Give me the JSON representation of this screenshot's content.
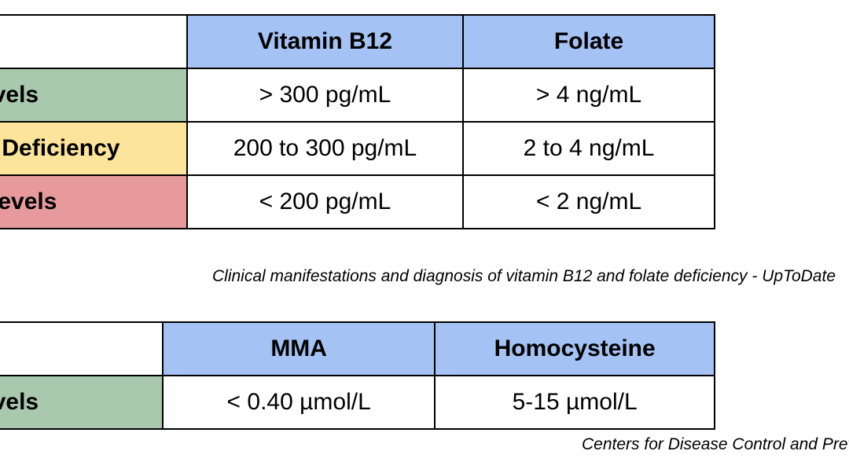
{
  "table1": {
    "headers": [
      "",
      "Vitamin B12",
      "Folate"
    ],
    "rows": [
      {
        "label": "Normal Levels",
        "b12": "> 300 pg/mL",
        "folate": "> 4 ng/mL",
        "color": "#a9c9ae"
      },
      {
        "label": "Borderline Deficiency",
        "b12": "200 to 300 pg/mL",
        "folate": "2 to 4 ng/mL",
        "color": "#fde49b"
      },
      {
        "label": "Deficient Levels",
        "b12": "< 200 pg/mL",
        "folate": "< 2 ng/mL",
        "color": "#e79a9b"
      }
    ]
  },
  "caption1": "Clinical manifestations and diagnosis of vitamin B12 and folate deficiency - UpToDate",
  "table2": {
    "headers": [
      "",
      "MMA",
      "Homocysteine"
    ],
    "rows": [
      {
        "label": "Normal Levels",
        "mma": "< 0.40 µmol/L",
        "homocysteine": "5-15 µmol/L",
        "color": "#a9c9ae"
      }
    ]
  },
  "caption2": "Centers for Disease Control and Prevention",
  "colors": {
    "header_blue": "#a4c2f4",
    "normal_green": "#a9c9ae",
    "borderline_yellow": "#fde49b",
    "deficient_red": "#e79a9b"
  }
}
